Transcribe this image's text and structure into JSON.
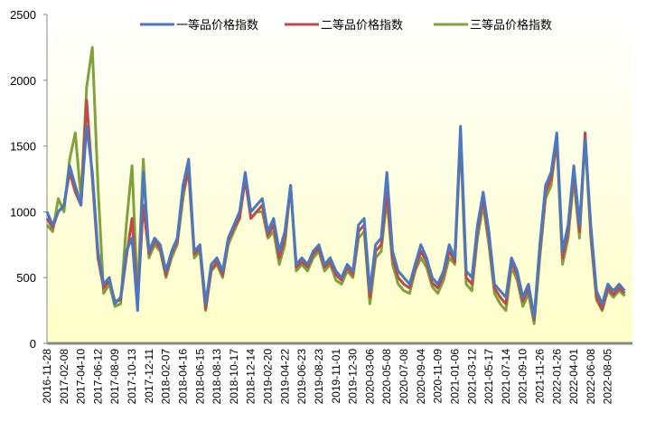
{
  "chart_data": {
    "type": "line",
    "categories": [
      "2016-11-28",
      null,
      null,
      "2017-02-08",
      null,
      null,
      "2017-04-10",
      null,
      null,
      "2017-06-12",
      null,
      null,
      "2017-08-09",
      null,
      null,
      "2017-10-13",
      null,
      null,
      "2017-12-11",
      null,
      null,
      "2018-02-07",
      null,
      null,
      "2018-04-16",
      null,
      null,
      "2018-06-15",
      null,
      null,
      "2018-08-13",
      null,
      null,
      "2018-10-17",
      null,
      null,
      "2018-12-14",
      null,
      null,
      "2019-02-20",
      null,
      null,
      "2019-04-22",
      null,
      null,
      "2019-06-23",
      null,
      null,
      "2019-08-23",
      null,
      null,
      "2019-11-01",
      null,
      null,
      "2019-12-30",
      null,
      null,
      "2020-03-06",
      null,
      null,
      "2020-05-08",
      null,
      null,
      "2020-07-08",
      null,
      null,
      "2020-09-04",
      null,
      null,
      "2020-11-09",
      null,
      null,
      "2021-01-06",
      null,
      null,
      "2021-03-12",
      null,
      null,
      "2021-05-17",
      null,
      null,
      "2021-07-14",
      null,
      null,
      "2021-09-10",
      null,
      null,
      "2021-11-26",
      null,
      null,
      "2022-01-26",
      null,
      null,
      "2022-04-01",
      null,
      null,
      "2022-06-08",
      null,
      null,
      "2022-08-05",
      null,
      null,
      null
    ],
    "series": [
      {
        "name": "一等品价格指数",
        "color": "#4a78c2",
        "values": [
          1000,
          900,
          1000,
          1050,
          1350,
          1200,
          1050,
          1650,
          1300,
          700,
          450,
          500,
          300,
          350,
          700,
          800,
          250,
          1300,
          700,
          800,
          750,
          550,
          700,
          800,
          1200,
          1400,
          700,
          750,
          300,
          600,
          650,
          550,
          800,
          900,
          1000,
          1300,
          1000,
          1050,
          1100,
          850,
          950,
          700,
          850,
          1200,
          600,
          650,
          600,
          700,
          750,
          600,
          650,
          550,
          500,
          600,
          550,
          900,
          950,
          400,
          750,
          800,
          1300,
          700,
          550,
          500,
          450,
          600,
          750,
          650,
          500,
          450,
          550,
          750,
          650,
          1650,
          550,
          500,
          900,
          1150,
          850,
          450,
          400,
          350,
          650,
          550,
          350,
          450,
          200,
          750,
          1200,
          1300,
          1600,
          700,
          900,
          1350,
          900,
          1550,
          900,
          400,
          300,
          450,
          400,
          450,
          400
        ]
      },
      {
        "name": "二等品价格指数",
        "color": "#be4b48",
        "values": [
          950,
          880,
          1000,
          1050,
          1300,
          1150,
          1050,
          1850,
          1250,
          650,
          420,
          480,
          320,
          330,
          650,
          950,
          300,
          1050,
          680,
          780,
          720,
          520,
          680,
          780,
          1150,
          1300,
          680,
          720,
          260,
          560,
          620,
          520,
          780,
          880,
          950,
          1250,
          950,
          1000,
          1050,
          820,
          900,
          650,
          800,
          1200,
          580,
          620,
          580,
          680,
          720,
          580,
          620,
          520,
          480,
          580,
          520,
          850,
          900,
          350,
          700,
          750,
          1150,
          650,
          500,
          450,
          420,
          570,
          700,
          620,
          460,
          420,
          520,
          700,
          620,
          1600,
          500,
          450,
          850,
          1100,
          800,
          420,
          350,
          300,
          620,
          520,
          320,
          420,
          180,
          700,
          1150,
          1250,
          1550,
          650,
          850,
          1300,
          850,
          1600,
          850,
          350,
          260,
          420,
          370,
          420,
          380
        ]
      },
      {
        "name": "三等品价格指数",
        "color": "#7fa23a",
        "values": [
          900,
          850,
          1100,
          1000,
          1400,
          1600,
          1100,
          1950,
          2250,
          1200,
          380,
          450,
          280,
          300,
          900,
          1350,
          350,
          1400,
          650,
          750,
          700,
          500,
          650,
          750,
          1100,
          1350,
          650,
          700,
          250,
          550,
          600,
          500,
          750,
          850,
          950,
          1250,
          950,
          1000,
          1000,
          800,
          850,
          600,
          750,
          1200,
          550,
          600,
          550,
          650,
          700,
          550,
          600,
          480,
          450,
          550,
          500,
          800,
          850,
          300,
          650,
          700,
          1100,
          600,
          450,
          400,
          380,
          550,
          650,
          580,
          430,
          380,
          480,
          650,
          600,
          1550,
          450,
          400,
          800,
          1050,
          750,
          380,
          300,
          250,
          580,
          480,
          280,
          380,
          150,
          650,
          1100,
          1200,
          1550,
          600,
          800,
          1250,
          800,
          1550,
          800,
          330,
          250,
          400,
          350,
          400,
          360
        ]
      }
    ],
    "ylim": [
      0,
      2500
    ],
    "yticks": [
      0,
      500,
      1000,
      1500,
      2000,
      2500
    ],
    "grid": false,
    "legend": "top"
  }
}
